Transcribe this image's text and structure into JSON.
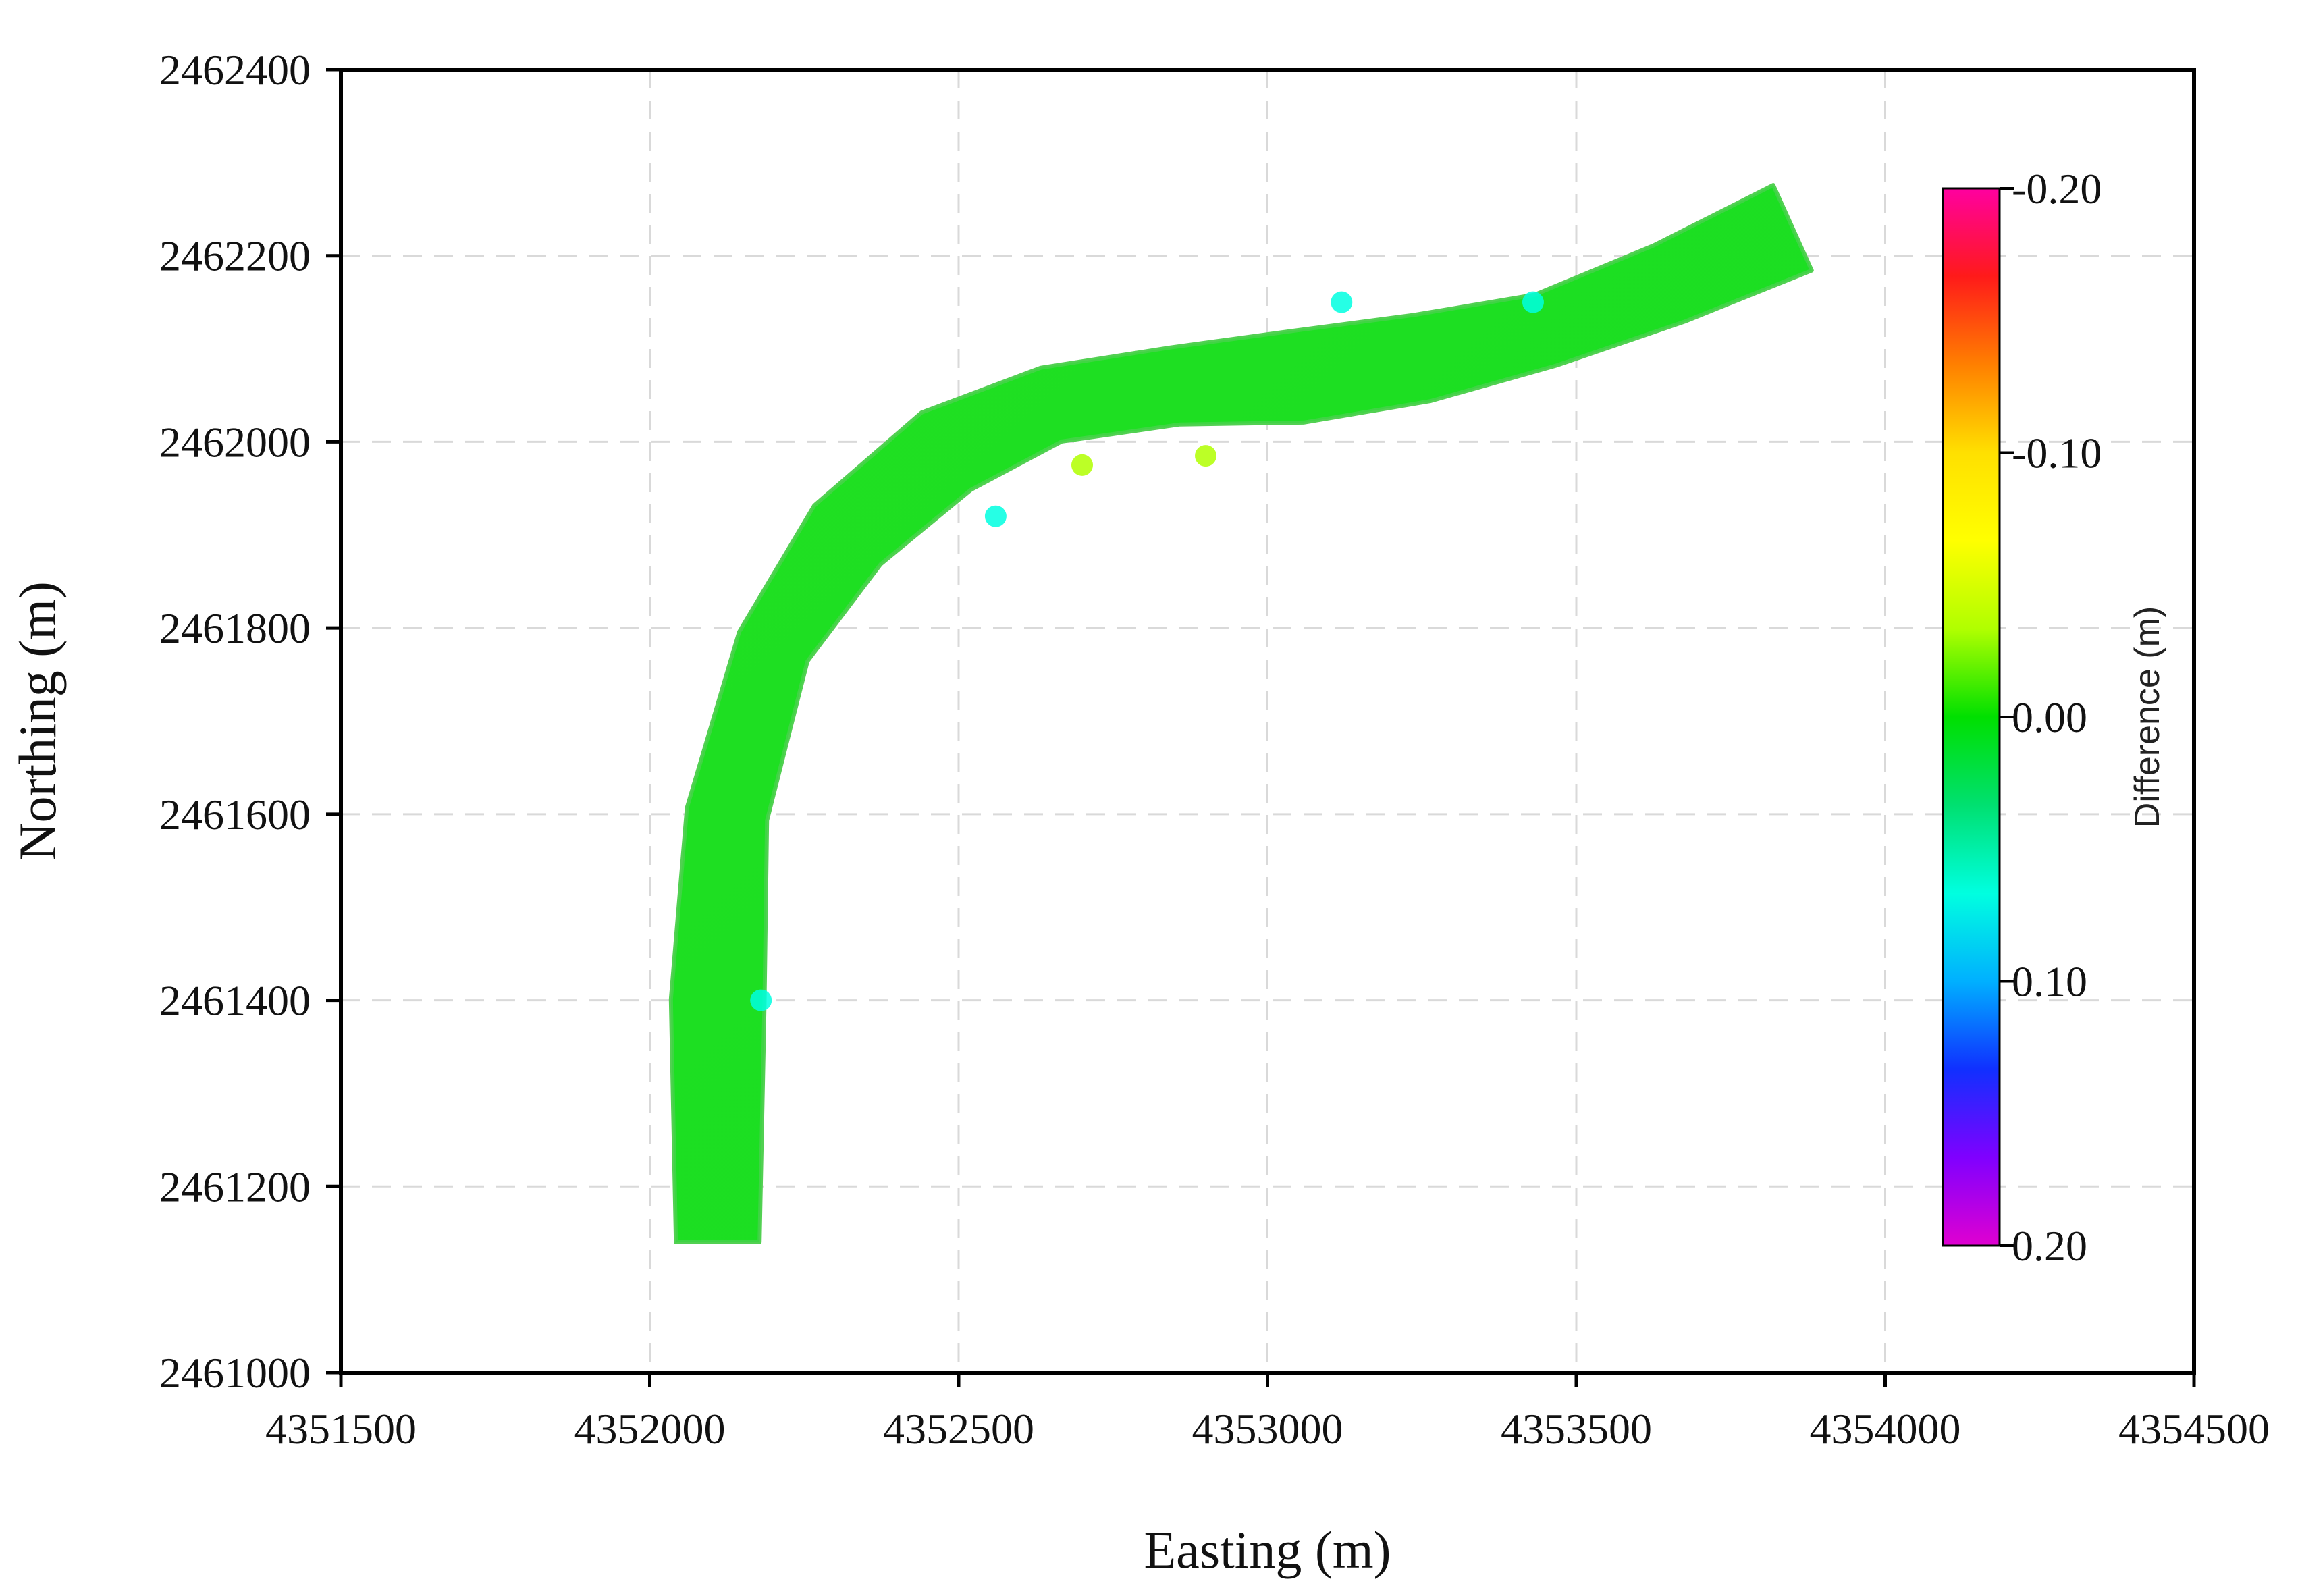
{
  "chart_data": {
    "type": "heatmap",
    "xlabel": "Easting (m)",
    "ylabel": "Northing (m)",
    "xlim": [
      4351500,
      4354500
    ],
    "ylim": [
      2461000,
      2462400
    ],
    "xticks": [
      "4351500",
      "4352000",
      "4352500",
      "4353000",
      "4353500",
      "4354000",
      "4354500"
    ],
    "yticks": [
      "2461000",
      "2461200",
      "2461400",
      "2461600",
      "2461800",
      "2462000",
      "2462200",
      "2462400"
    ],
    "grid": true,
    "colorbar": {
      "label": "Difference (m)",
      "range": [
        -0.2,
        0.2
      ],
      "ticks": [
        "-0.20",
        "-0.10",
        "0.00",
        "0.10",
        "0.20"
      ],
      "colormap": [
        "#ff00a0",
        "#ff1a1a",
        "#ff8000",
        "#ffe000",
        "#ffff00",
        "#b0ff00",
        "#00e000",
        "#00e070",
        "#00ffe0",
        "#00b0ff",
        "#1030ff",
        "#8000ff",
        "#e000d0"
      ]
    },
    "river_band": {
      "dominant_value": 0.0,
      "dominant_color": "#1ee01e",
      "centerline": [
        [
          4352110,
          2461140
        ],
        [
          4352110,
          2461400
        ],
        [
          4352125,
          2461600
        ],
        [
          4352200,
          2461780
        ],
        [
          4352320,
          2461900
        ],
        [
          4352480,
          2461990
        ],
        [
          4352650,
          2462040
        ],
        [
          4352850,
          2462060
        ],
        [
          4353050,
          2462070
        ],
        [
          4353250,
          2462090
        ],
        [
          4353450,
          2462120
        ],
        [
          4353650,
          2462170
        ],
        [
          4353850,
          2462230
        ]
      ],
      "edge_anomalies": [
        {
          "easting": 4352700,
          "northing": 2461975,
          "value": -0.03
        },
        {
          "easting": 4352900,
          "northing": 2461985,
          "value": -0.02
        },
        {
          "easting": 4352560,
          "northing": 2461920,
          "value": 0.07
        },
        {
          "easting": 4353430,
          "northing": 2462150,
          "value": 0.05
        },
        {
          "easting": 4352180,
          "northing": 2461400,
          "value": 0.06
        },
        {
          "easting": 4353120,
          "northing": 2462150,
          "value": 0.06
        }
      ]
    }
  }
}
